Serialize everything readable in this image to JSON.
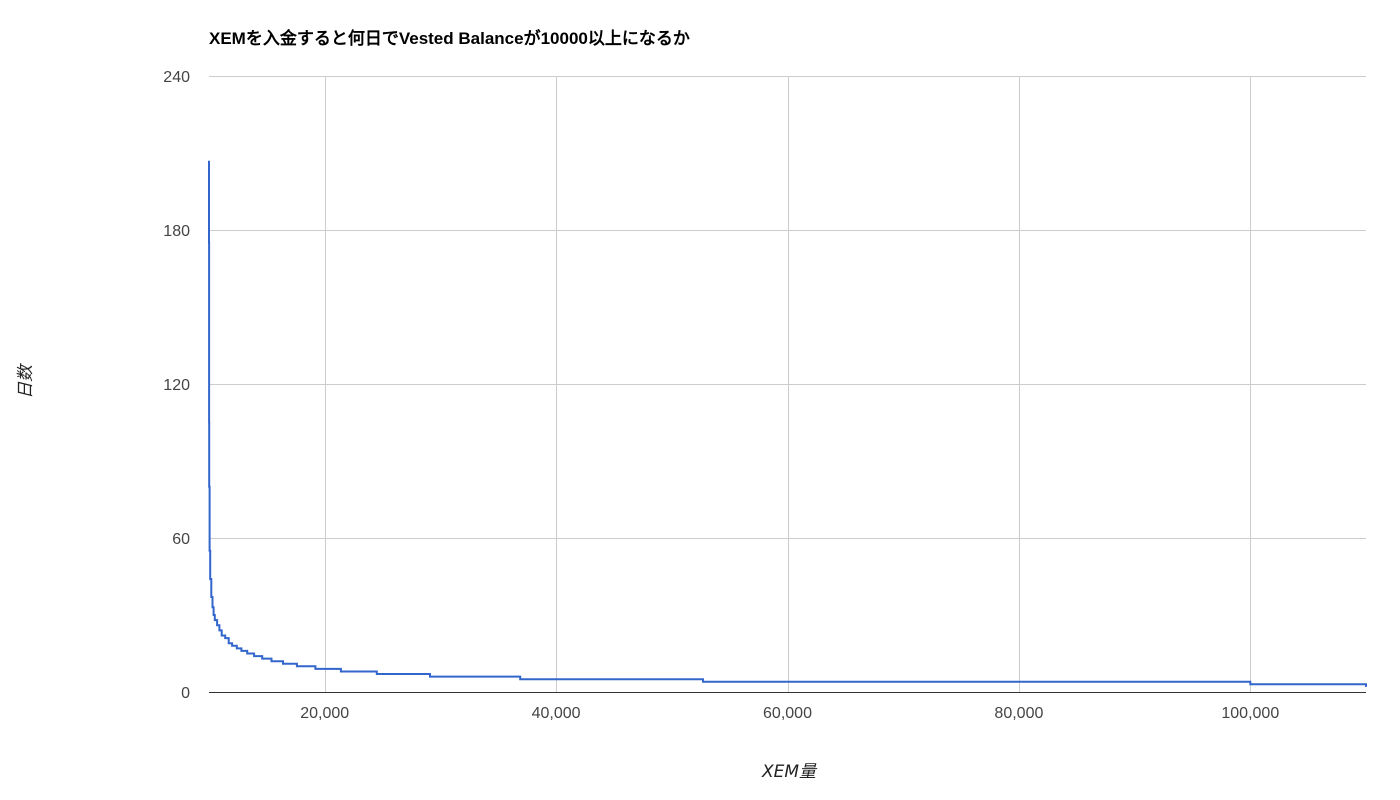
{
  "chart_data": {
    "type": "line",
    "title": "XEMを入金すると何日でVested Balanceが10000以上になるか",
    "xlabel": "XEM量",
    "ylabel": "日数",
    "xlim": [
      10000,
      110000
    ],
    "ylim": [
      0,
      240
    ],
    "x_ticks": [
      20000,
      40000,
      60000,
      80000,
      100000
    ],
    "x_tick_labels": [
      "20,000",
      "40,000",
      "60,000",
      "80,000",
      "100,000"
    ],
    "y_ticks": [
      0,
      60,
      120,
      180,
      240
    ],
    "y_tick_labels": [
      "0",
      "60",
      "120",
      "180",
      "240"
    ],
    "grid": true,
    "legend": "none",
    "line_color": "#3366cc",
    "series": [
      {
        "x": [
          10000,
          10001,
          10005,
          10010,
          10020,
          10050,
          10100,
          10200,
          10300,
          10400,
          10500,
          10700,
          10900,
          11100,
          11400,
          11700,
          12000,
          12400,
          12800,
          13300,
          13900,
          14600,
          15400,
          16400,
          17600,
          19200,
          21400,
          24500,
          29100,
          36900,
          52700,
          100000,
          110000
        ],
        "y": [
          207,
          175,
          130,
          105,
          80,
          55,
          44,
          37,
          33,
          30,
          28,
          26,
          24,
          22,
          21,
          19,
          18,
          17,
          16,
          15,
          14,
          13,
          12,
          11,
          10,
          9,
          8,
          7,
          6,
          5,
          4,
          3,
          2
        ]
      }
    ]
  }
}
